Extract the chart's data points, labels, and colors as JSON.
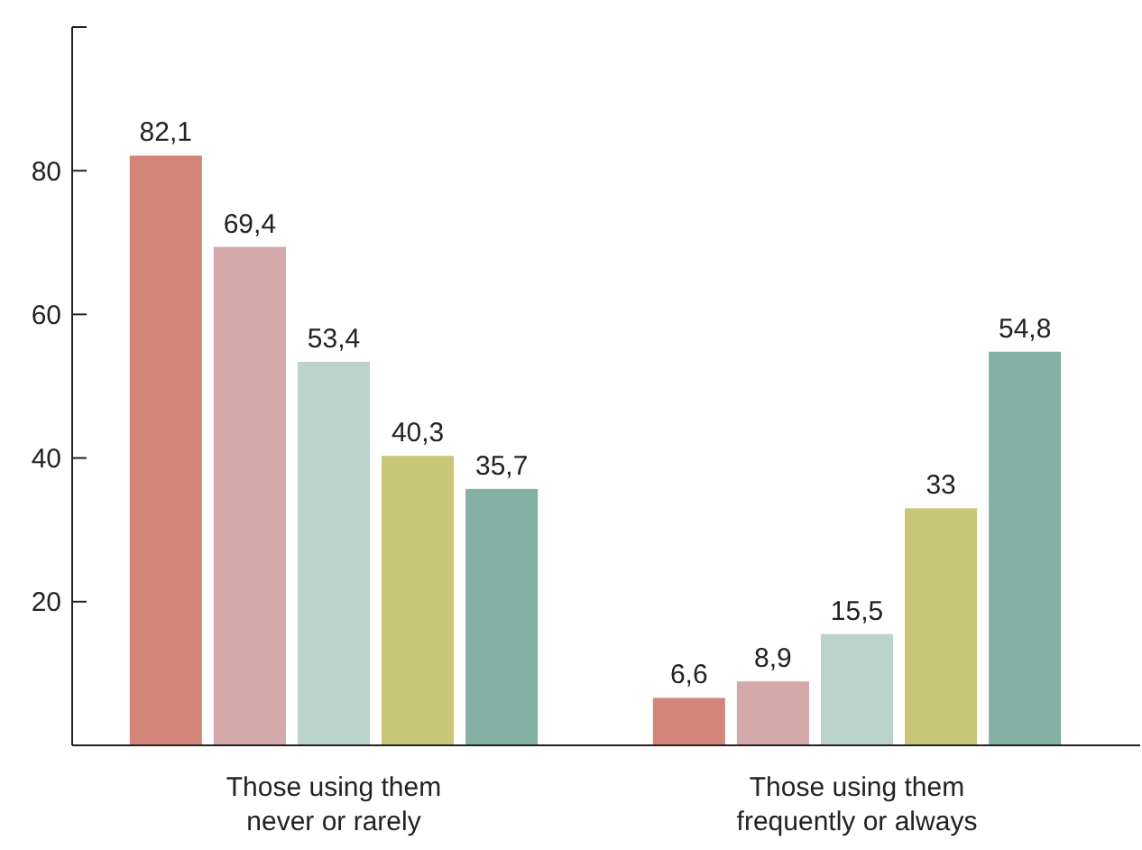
{
  "chart_data": {
    "type": "bar",
    "categories": [
      "Those using them never or rarely",
      "Those using them frequently or always"
    ],
    "series": [
      {
        "color": "#d4857a",
        "values": [
          82.1,
          6.6
        ],
        "value_labels": [
          "82,1",
          "6,6"
        ]
      },
      {
        "color": "#d4a9a9",
        "values": [
          69.4,
          8.9
        ],
        "value_labels": [
          "69,4",
          "8,9"
        ]
      },
      {
        "color": "#bcd3cc",
        "values": [
          53.4,
          15.5
        ],
        "value_labels": [
          "53,4",
          "15,5"
        ]
      },
      {
        "color": "#c8c677",
        "values": [
          40.3,
          33
        ],
        "value_labels": [
          "40,3",
          "33"
        ]
      },
      {
        "color": "#84b0a4",
        "values": [
          35.7,
          54.8
        ],
        "value_labels": [
          "35,7",
          "54,8"
        ]
      }
    ],
    "ylim": [
      0,
      100
    ],
    "yticks": [
      20,
      40,
      60,
      80,
      {
        "value": 100,
        "label": null
      }
    ],
    "grid": false
  }
}
